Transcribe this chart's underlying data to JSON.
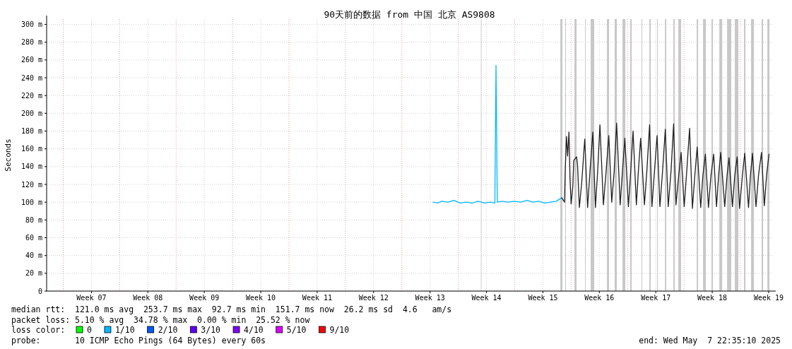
{
  "chart_data": {
    "type": "line",
    "title": "90天前的数据 from 中国 北京 AS9808",
    "ylabel": "Seconds",
    "xlim": [
      "2025-02-06T22:35",
      "2025-05-07T22:35"
    ],
    "ylim": [
      0,
      306
    ],
    "xticks": [
      {
        "value": "2025-02-12T12:00",
        "label": "Week 07"
      },
      {
        "value": "2025-02-19T12:00",
        "label": "Week 08"
      },
      {
        "value": "2025-02-26T12:00",
        "label": "Week 09"
      },
      {
        "value": "2025-03-05T12:00",
        "label": "Week 10"
      },
      {
        "value": "2025-03-12T12:00",
        "label": "Week 11"
      },
      {
        "value": "2025-03-19T12:00",
        "label": "Week 12"
      },
      {
        "value": "2025-03-26T12:00",
        "label": "Week 13"
      },
      {
        "value": "2025-04-02T12:00",
        "label": "Week 14"
      },
      {
        "value": "2025-04-09T12:00",
        "label": "Week 15"
      },
      {
        "value": "2025-04-16T12:00",
        "label": "Week 16"
      },
      {
        "value": "2025-04-23T12:00",
        "label": "Week 17"
      },
      {
        "value": "2025-04-30T12:00",
        "label": "Week 18"
      },
      {
        "value": "2025-05-07T12:00",
        "label": "Week 19"
      }
    ],
    "yticks": [
      0,
      {
        "value": 20,
        "label": "20 m"
      },
      {
        "value": 40,
        "label": "40 m"
      },
      {
        "value": 60,
        "label": "60 m"
      },
      {
        "value": 80,
        "label": "80 m"
      },
      {
        "value": 100,
        "label": "100 m"
      },
      {
        "value": 120,
        "label": "120 m"
      },
      {
        "value": 140,
        "label": "140 m"
      },
      {
        "value": 160,
        "label": "160 m"
      },
      {
        "value": 180,
        "label": "180 m"
      },
      {
        "value": 200,
        "label": "200 m"
      },
      {
        "value": 220,
        "label": "220 m"
      },
      {
        "value": 240,
        "label": "240 m"
      },
      {
        "value": 260,
        "label": "260 m"
      },
      {
        "value": 280,
        "label": "280 m"
      },
      {
        "value": 300,
        "label": "300 m"
      }
    ],
    "grid": true,
    "legend": "bottom",
    "legend_title": "loss color:",
    "series": [
      {
        "color": "#00b8ff",
        "x": [
          "2025-03-26T21:08",
          "2025-03-27T10:35",
          "2025-03-27T22:35",
          "2025-03-28T17:47",
          "2025-03-29T10:35",
          "2025-03-30T05:47",
          "2025-03-30T22:35",
          "2025-03-31T17:47",
          "2025-04-01T10:35",
          "2025-04-02T05:47",
          "2025-04-02T22:35",
          "2025-04-03T12:59",
          "2025-04-03T16:20",
          "2025-04-03T20:11",
          "2025-04-04T10:35",
          "2025-04-05T03:23",
          "2025-04-05T22:35",
          "2025-04-06T17:47",
          "2025-04-07T12:59",
          "2025-04-08T05:47",
          "2025-04-08T22:35",
          "2025-04-09T17:47",
          "2025-04-10T10:35",
          "2025-04-11T03:23",
          "2025-04-11T19:57"
        ],
        "values": [
          100,
          99,
          101,
          100,
          102,
          99,
          100,
          99,
          101,
          99,
          100,
          99,
          254,
          100,
          101,
          100,
          101,
          100,
          102,
          100,
          101,
          99,
          100,
          101,
          105
        ]
      },
      {
        "color": "#202020",
        "x": [
          "2025-04-11T19:57",
          "2025-04-12T04:21",
          "2025-04-12T06:30",
          "2025-04-12T10:06",
          "2025-04-12T13:28",
          "2025-04-12T17:33",
          "2025-04-12T20:40",
          "2025-04-13T00:01",
          "2025-04-13T05:04",
          "2025-04-13T07:42",
          "2025-04-13T16:06",
          "2025-04-13T18:59",
          "2025-04-14T00:30",
          "2025-04-14T07:28",
          "2025-04-14T16:35",
          "2025-04-15T00:59",
          "2025-04-15T08:11",
          "2025-04-15T16:35",
          "2025-04-16T00:16",
          "2025-04-16T06:59",
          "2025-04-16T13:42",
          "2025-04-17T00:01",
          "2025-04-17T08:11",
          "2025-04-17T16:06",
          "2025-04-18T00:45",
          "2025-04-18T08:11",
          "2025-04-18T15:23",
          "2025-04-19T01:57",
          "2025-04-19T08:54",
          "2025-04-19T15:52",
          "2025-04-20T02:25",
          "2025-04-20T09:23",
          "2025-04-20T16:20",
          "2025-04-21T02:11",
          "2025-04-21T08:11",
          "2025-04-21T14:54",
          "2025-04-22T02:11",
          "2025-04-22T09:23",
          "2025-04-22T17:33",
          "2025-04-23T00:30",
          "2025-04-23T08:11",
          "2025-04-23T15:52",
          "2025-04-24T00:16",
          "2025-04-24T08:11",
          "2025-04-24T16:20",
          "2025-04-25T00:59",
          "2025-04-25T09:23",
          "2025-04-25T17:04",
          "2025-04-26T00:01",
          "2025-04-26T08:11",
          "2025-04-26T15:23",
          "2025-04-27T00:30",
          "2025-04-27T08:11",
          "2025-04-27T16:35",
          "2025-04-28T00:59",
          "2025-04-28T08:11",
          "2025-04-28T15:09",
          "2025-04-29T01:42",
          "2025-04-29T08:11",
          "2025-04-29T15:37",
          "2025-04-30T00:45",
          "2025-04-30T08:11",
          "2025-04-30T16:20",
          "2025-05-01T00:45",
          "2025-05-01T06:59",
          "2025-05-01T13:13",
          "2025-05-02T01:13",
          "2025-05-02T08:11",
          "2025-05-02T13:57",
          "2025-05-03T00:16",
          "2025-05-03T06:59",
          "2025-05-03T14:11",
          "2025-05-03T21:23",
          "2025-05-04T05:47",
          "2025-05-04T12:45",
          "2025-05-05T00:01",
          "2025-05-05T05:47",
          "2025-05-05T11:47",
          "2025-05-05T22:21",
          "2025-05-06T05:47",
          "2025-05-06T14:40",
          "2025-05-06T23:04",
          "2025-05-07T05:47",
          "2025-05-07T12:59"
        ],
        "values": [
          105,
          100,
          138,
          174,
          152,
          179,
          126,
          98,
          118,
          147,
          151,
          142,
          94,
          122,
          171,
          94,
          135,
          179,
          94,
          135,
          187,
          97,
          135,
          175,
          100,
          135,
          189,
          97,
          135,
          172,
          95,
          135,
          180,
          97,
          135,
          172,
          97,
          135,
          187,
          95,
          135,
          175,
          95,
          135,
          182,
          95,
          135,
          188,
          97,
          130,
          156,
          95,
          135,
          183,
          93,
          130,
          162,
          94,
          130,
          154,
          94,
          130,
          154,
          95,
          130,
          156,
          95,
          130,
          150,
          95,
          130,
          151,
          93,
          130,
          155,
          94,
          130,
          155,
          95,
          130,
          156,
          96,
          130,
          154
        ]
      },
      {
        "name": "0",
        "color": "#00ff00"
      },
      {
        "name": "1/10",
        "color": "#00b8ff"
      },
      {
        "name": "2/10",
        "color": "#0059ff"
      },
      {
        "name": "3/10",
        "color": "#5e00ff"
      },
      {
        "name": "4/10",
        "color": "#7e00ff"
      },
      {
        "name": "5/10",
        "color": "#dd00ff"
      },
      {
        "name": "9/10",
        "color": "#ff0000"
      }
    ],
    "bands": [
      {
        "axis": "x",
        "from": "2025-04-01T19:13",
        "to": "2025-04-01T21:08",
        "color": "#c8c8c8"
      },
      {
        "axis": "x",
        "from": "2025-04-11T15:52",
        "to": "2025-04-11T22:06",
        "color": "#c8c8c8"
      },
      {
        "axis": "x",
        "from": "2025-04-12T06:30",
        "to": "2025-04-12T08:40",
        "color": "#c8c8c8"
      },
      {
        "axis": "x",
        "from": "2025-04-13T09:52",
        "to": "2025-04-13T16:06",
        "color": "#c8c8c8"
      },
      {
        "axis": "x",
        "from": "2025-04-14T17:18",
        "to": "2025-04-14T19:28",
        "color": "#c8c8c8"
      },
      {
        "axis": "x",
        "from": "2025-04-15T10:06",
        "to": "2025-04-15T20:40",
        "color": "#c8c8c8"
      },
      {
        "axis": "x",
        "from": "2025-04-17T10:35",
        "to": "2025-04-17T16:49",
        "color": "#c8c8c8"
      },
      {
        "axis": "x",
        "from": "2025-04-18T09:37",
        "to": "2025-04-18T16:06",
        "color": "#c8c8c8"
      },
      {
        "axis": "x",
        "from": "2025-04-19T08:54",
        "to": "2025-04-19T17:18",
        "color": "#c8c8c8"
      },
      {
        "axis": "x",
        "from": "2025-04-20T07:57",
        "to": "2025-04-20T12:16",
        "color": "#c8c8c8"
      },
      {
        "axis": "x",
        "from": "2025-04-21T17:33",
        "to": "2025-04-21T19:42",
        "color": "#c8c8c8"
      },
      {
        "axis": "x",
        "from": "2025-04-22T16:49",
        "to": "2025-04-22T20:54",
        "color": "#c8c8c8"
      },
      {
        "axis": "x",
        "from": "2025-04-23T15:52",
        "to": "2025-04-23T18:01",
        "color": "#c8c8c8"
      },
      {
        "axis": "x",
        "from": "2025-04-24T15:09",
        "to": "2025-04-24T19:13",
        "color": "#c8c8c8"
      },
      {
        "axis": "x",
        "from": "2025-04-25T16:20",
        "to": "2025-04-25T20:25",
        "color": "#c8c8c8"
      },
      {
        "axis": "x",
        "from": "2025-04-26T06:59",
        "to": "2025-04-26T15:23",
        "color": "#c8c8c8"
      },
      {
        "axis": "x",
        "from": "2025-04-28T13:42",
        "to": "2025-04-28T18:01",
        "color": "#c8c8c8"
      },
      {
        "axis": "x",
        "from": "2025-04-29T08:40",
        "to": "2025-04-29T17:04",
        "color": "#c8c8c8"
      },
      {
        "axis": "x",
        "from": "2025-04-30T09:52",
        "to": "2025-04-30T14:11",
        "color": "#c8c8c8"
      },
      {
        "axis": "x",
        "from": "2025-05-01T09:09",
        "to": "2025-05-01T17:33",
        "color": "#c8c8c8"
      },
      {
        "axis": "x",
        "from": "2025-05-02T08:11",
        "to": "2025-05-02T20:40",
        "color": "#c8c8c8"
      },
      {
        "axis": "x",
        "from": "2025-05-03T07:13",
        "to": "2025-05-03T17:47",
        "color": "#c8c8c8"
      },
      {
        "axis": "x",
        "from": "2025-05-04T10:35",
        "to": "2025-05-04T14:54",
        "color": "#c8c8c8"
      },
      {
        "axis": "x",
        "from": "2025-05-05T07:42",
        "to": "2025-05-05T16:06",
        "color": "#c8c8c8"
      },
      {
        "axis": "x",
        "from": "2025-05-06T15:09",
        "to": "2025-05-06T19:28",
        "color": "#c8c8c8"
      },
      {
        "axis": "x",
        "from": "2025-05-07T08:11",
        "to": "2025-05-07T14:25",
        "color": "#c8c8c8"
      }
    ],
    "ref_lines": [
      {
        "axis": "x",
        "value": "2025-02-09",
        "color": "#f0a0a0",
        "line_style": "dotted"
      },
      {
        "axis": "x",
        "value": "2025-02-16",
        "color": "#f0a0a0",
        "line_style": "dotted"
      },
      {
        "axis": "x",
        "value": "2025-02-23",
        "color": "#f0a0a0",
        "line_style": "dotted"
      },
      {
        "axis": "x",
        "value": "2025-03-02",
        "color": "#f0a0a0",
        "line_style": "dotted"
      },
      {
        "axis": "x",
        "value": "2025-03-09",
        "color": "#f0a0a0",
        "line_style": "dotted"
      },
      {
        "axis": "x",
        "value": "2025-03-16",
        "color": "#f0a0a0",
        "line_style": "dotted"
      },
      {
        "axis": "x",
        "value": "2025-03-23",
        "color": "#f0a0a0",
        "line_style": "dotted"
      },
      {
        "axis": "x",
        "value": "2025-03-30",
        "color": "#f0a0a0",
        "line_style": "dotted"
      },
      {
        "axis": "x",
        "value": "2025-04-06",
        "color": "#f0a0a0",
        "line_style": "dotted"
      },
      {
        "axis": "x",
        "value": "2025-04-13",
        "color": "#f0a0a0",
        "line_style": "dotted"
      },
      {
        "axis": "x",
        "value": "2025-04-20",
        "color": "#f0a0a0",
        "line_style": "dotted"
      },
      {
        "axis": "x",
        "value": "2025-04-27",
        "color": "#f0a0a0",
        "line_style": "dotted"
      },
      {
        "axis": "x",
        "value": "2025-05-04",
        "color": "#f0a0a0",
        "line_style": "dotted"
      }
    ],
    "annotations": [
      "median rtt:  121.0 ms avg  253.7 ms max  92.7 ms min  151.7 ms now  26.2 ms sd  4.6   am/s",
      "packet loss: 5.10 % avg  34.78 % max  0.00 % min  25.52 % now",
      "probe:       10 ICMP Echo Pings (64 Bytes) every 60s",
      "end: Wed May  7 22:35:10 2025"
    ]
  }
}
